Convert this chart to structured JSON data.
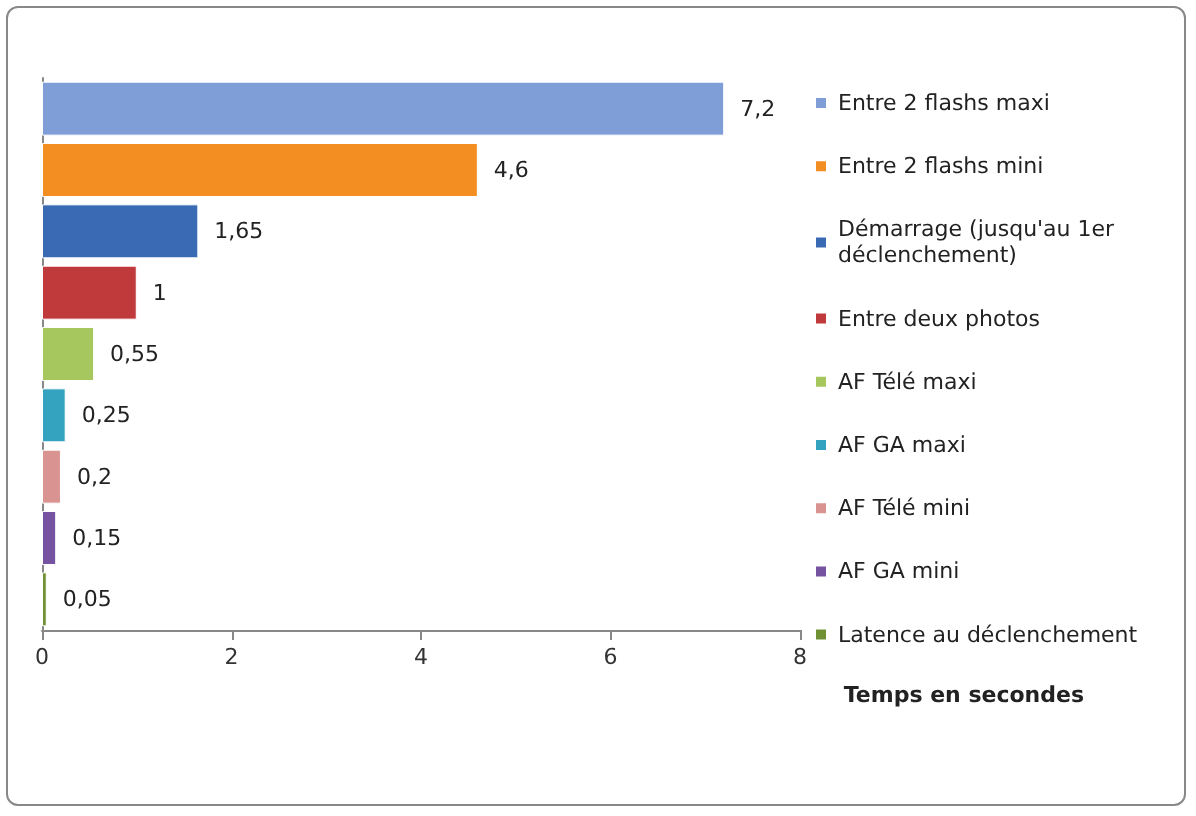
{
  "chart_data": {
    "type": "bar",
    "orientation": "horizontal",
    "xlabel": "Temps en secondes",
    "categories": [
      null,
      null,
      null,
      null,
      null,
      null,
      null,
      null,
      null
    ],
    "series": [
      {
        "name": "Entre 2 flashs maxi",
        "color": "#7f9ed8",
        "values": [
          7.2,
          null,
          null,
          null,
          null,
          null,
          null,
          null,
          null
        ],
        "value_labels": [
          "7,2",
          null,
          null,
          null,
          null,
          null,
          null,
          null,
          null
        ]
      },
      {
        "name": "Entre 2 flashs mini",
        "color": "#f28e22",
        "values": [
          null,
          4.6,
          null,
          null,
          null,
          null,
          null,
          null,
          null
        ],
        "value_labels": [
          null,
          "4,6",
          null,
          null,
          null,
          null,
          null,
          null,
          null
        ]
      },
      {
        "name": "Démarrage (jusqu'au 1er déclenchement)",
        "color": "#3a6ab3",
        "values": [
          null,
          null,
          1.65,
          null,
          null,
          null,
          null,
          null,
          null
        ],
        "value_labels": [
          null,
          null,
          "1,65",
          null,
          null,
          null,
          null,
          null,
          null
        ]
      },
      {
        "name": "Entre deux photos",
        "color": "#c0393b",
        "values": [
          null,
          null,
          null,
          1,
          null,
          null,
          null,
          null,
          null
        ],
        "value_labels": [
          null,
          null,
          null,
          "1",
          null,
          null,
          null,
          null,
          null
        ]
      },
      {
        "name": "AF Télé maxi",
        "color": "#a6c65e",
        "values": [
          null,
          null,
          null,
          null,
          0.55,
          null,
          null,
          null,
          null
        ],
        "value_labels": [
          null,
          null,
          null,
          null,
          "0,55",
          null,
          null,
          null,
          null
        ]
      },
      {
        "name": "AF GA maxi",
        "color": "#33a3bf",
        "values": [
          null,
          null,
          null,
          null,
          null,
          0.25,
          null,
          null,
          null
        ],
        "value_labels": [
          null,
          null,
          null,
          null,
          null,
          "0,25",
          null,
          null,
          null
        ]
      },
      {
        "name": "AF Télé mini",
        "color": "#d99391",
        "values": [
          null,
          null,
          null,
          null,
          null,
          null,
          0.2,
          null,
          null
        ],
        "value_labels": [
          null,
          null,
          null,
          null,
          null,
          null,
          "0,2",
          null,
          null
        ]
      },
      {
        "name": "AF GA mini",
        "color": "#7653a0",
        "values": [
          null,
          null,
          null,
          null,
          null,
          null,
          null,
          0.15,
          null
        ],
        "value_labels": [
          null,
          null,
          null,
          null,
          null,
          null,
          null,
          "0,15",
          null
        ]
      },
      {
        "name": "Latence au déclenchement",
        "color": "#6f9134",
        "values": [
          null,
          null,
          null,
          null,
          null,
          null,
          null,
          null,
          0.05
        ],
        "value_labels": [
          null,
          null,
          null,
          null,
          null,
          null,
          null,
          null,
          "0,05"
        ]
      }
    ],
    "xlim": [
      0,
      8
    ],
    "xticks": [
      0,
      2,
      4,
      6,
      8
    ],
    "grid": false,
    "legend": "right"
  }
}
